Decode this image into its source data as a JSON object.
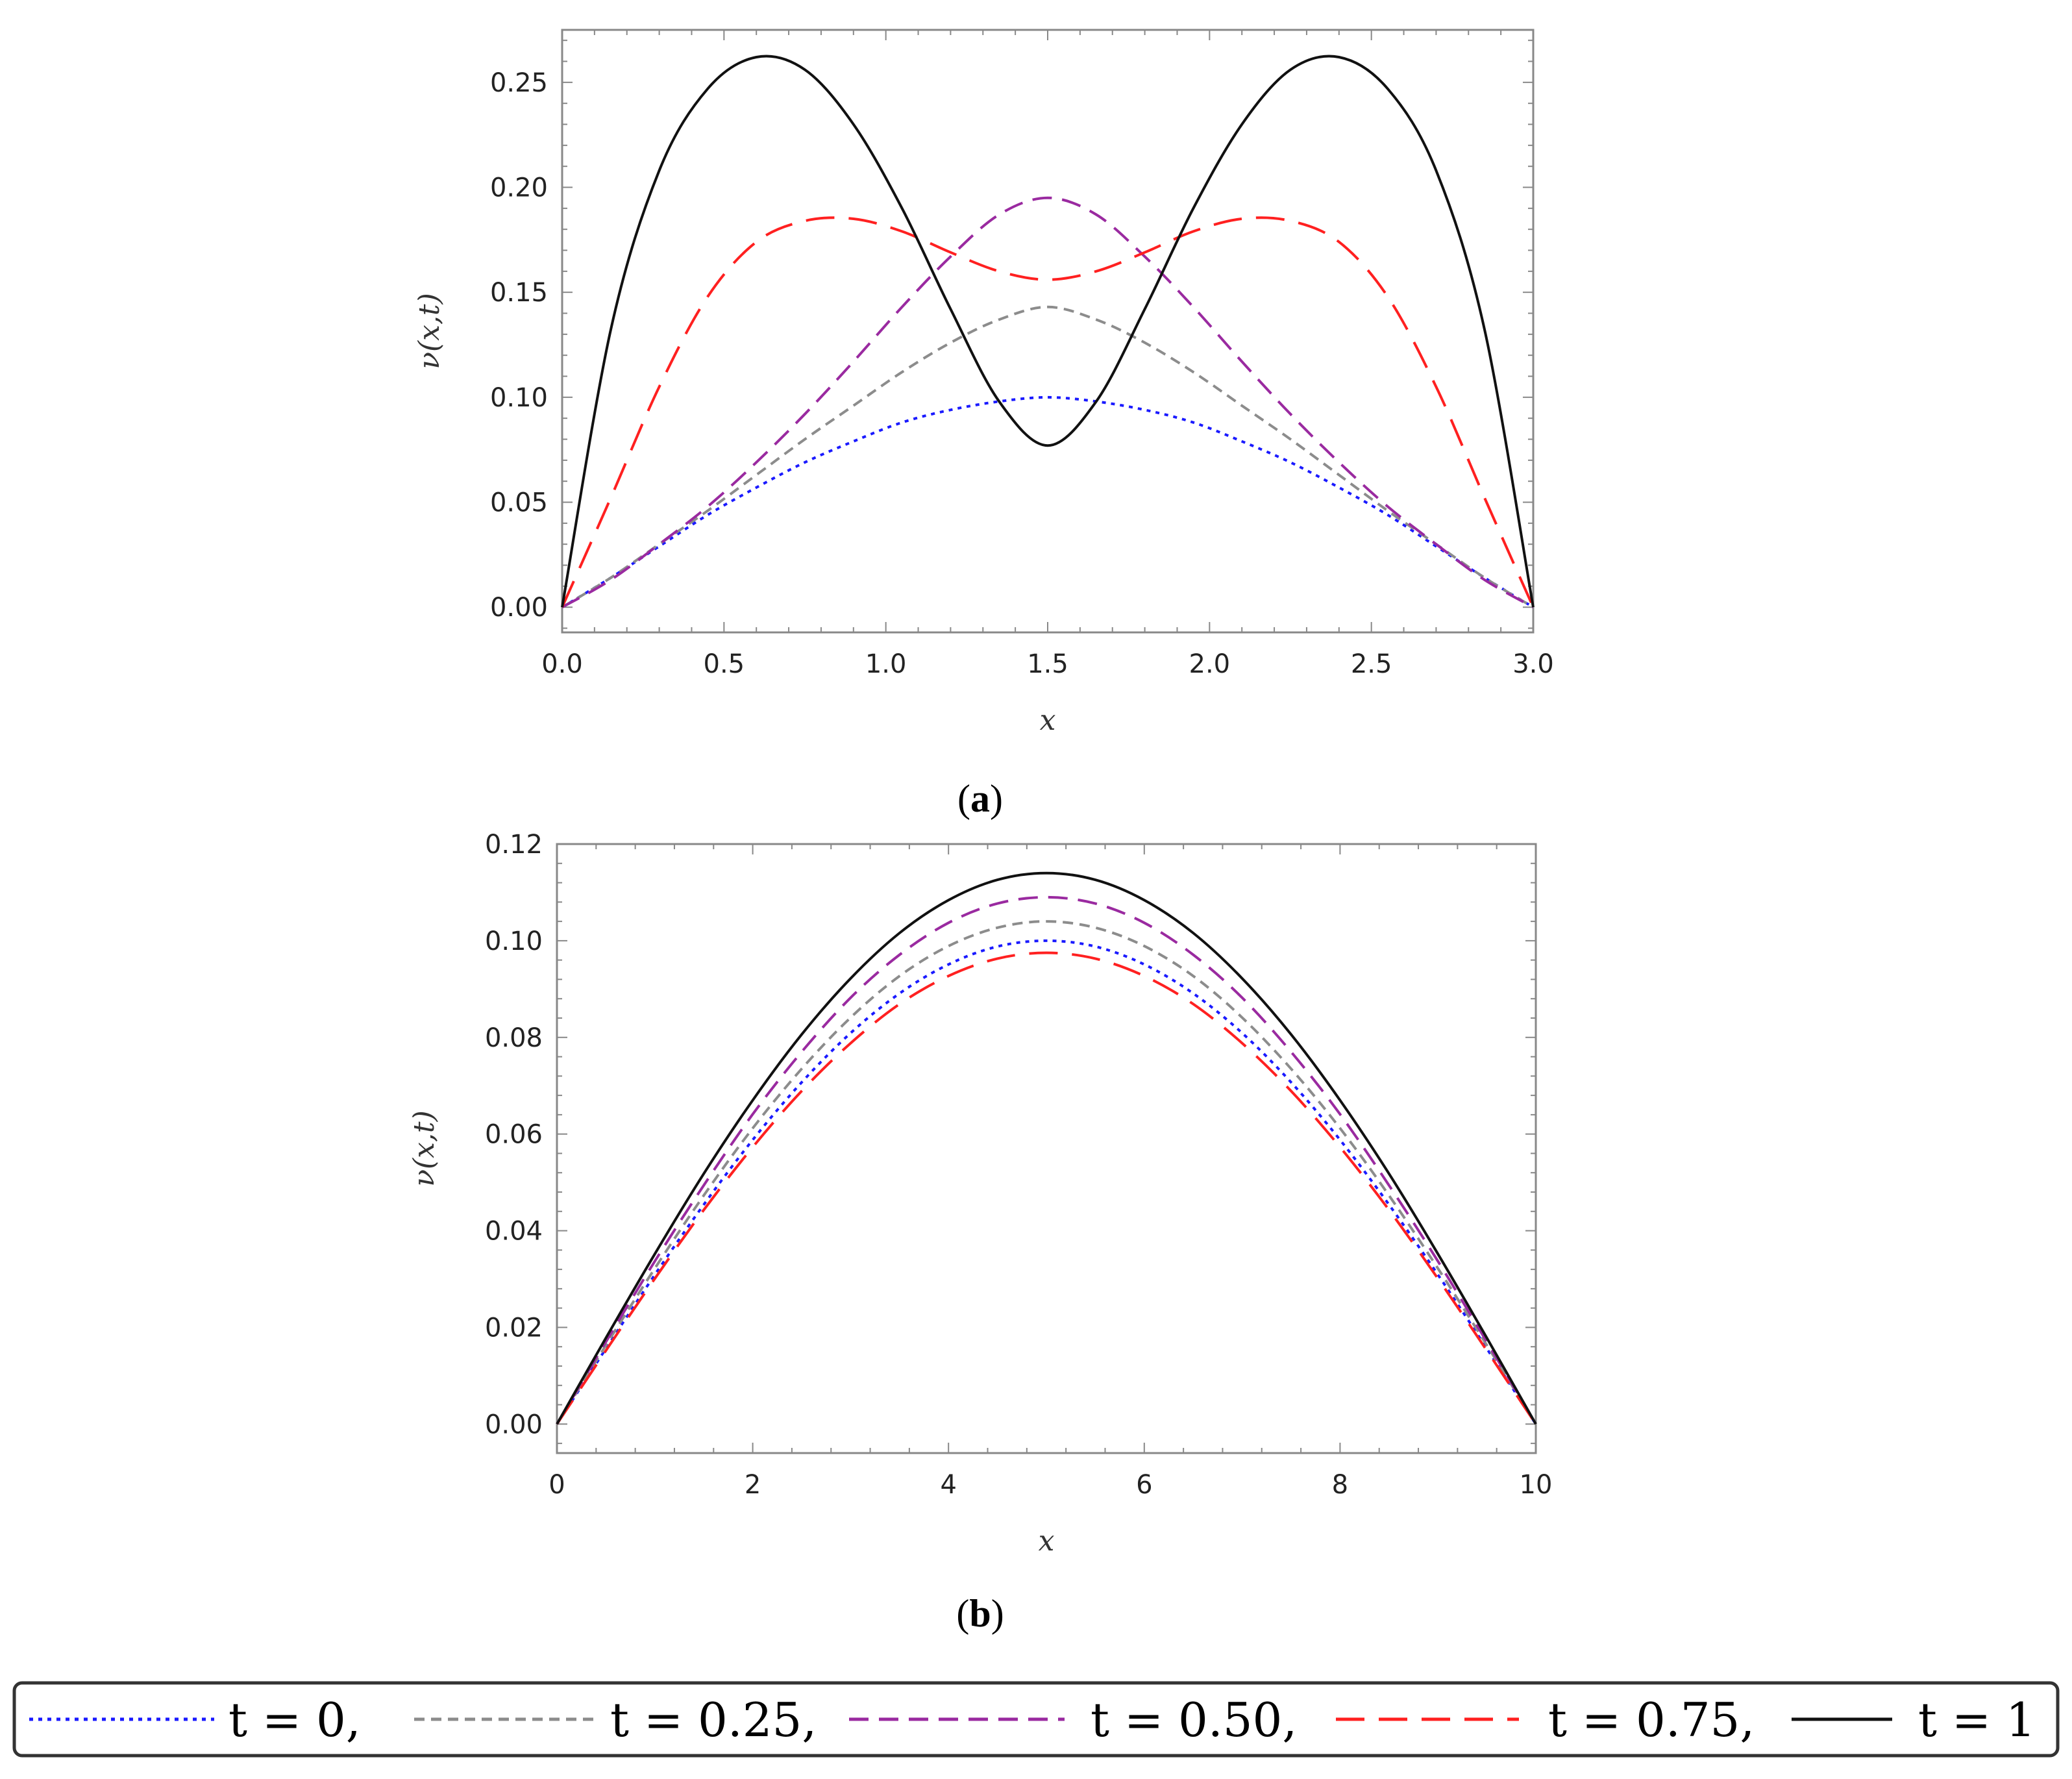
{
  "colors": {
    "t0": "#1a1aff",
    "t025": "#8c8c8c",
    "t050": "#9a2aa0",
    "t075": "#ff2020",
    "t1": "#111111"
  },
  "captions": {
    "a": "a",
    "b": "b"
  },
  "legend": {
    "entries": [
      {
        "label": "t = 0,",
        "color": "#1a1aff",
        "dash": "dotted"
      },
      {
        "label": "t = 0.25,",
        "color": "#8c8c8c",
        "dash": "short-dash"
      },
      {
        "label": "t = 0.50,",
        "color": "#9a2aa0",
        "dash": "dashed"
      },
      {
        "label": "t = 0.75,",
        "color": "#ff2020",
        "dash": "long-dash"
      },
      {
        "label": "t = 1",
        "color": "#111111",
        "dash": "solid"
      }
    ]
  },
  "chart_data": [
    {
      "type": "line",
      "panel": "a",
      "xlabel": "x",
      "ylabel": "ν(x,t)",
      "xlim": [
        0,
        3
      ],
      "ylim": [
        -0.012,
        0.275
      ],
      "xticks": [
        "0.0",
        "0.5",
        "1.0",
        "1.5",
        "2.0",
        "2.5",
        "3.0"
      ],
      "yticks": [
        "0.00",
        "0.05",
        "0.10",
        "0.15",
        "0.20",
        "0.25"
      ],
      "x": [
        0,
        0.15,
        0.3,
        0.45,
        0.6,
        0.75,
        0.9,
        1.05,
        1.2,
        1.35,
        1.5,
        1.65,
        1.8,
        1.95,
        2.1,
        2.25,
        2.4,
        2.55,
        2.7,
        2.85,
        3.0
      ],
      "series": [
        {
          "name": "t = 0",
          "values": [
            0,
            0.014,
            0.029,
            0.044,
            0.057,
            0.069,
            0.079,
            0.088,
            0.094,
            0.098,
            0.1,
            0.098,
            0.094,
            0.088,
            0.079,
            0.069,
            0.057,
            0.044,
            0.029,
            0.014,
            0
          ]
        },
        {
          "name": "t = 0.25",
          "values": [
            0,
            0.014,
            0.03,
            0.046,
            0.063,
            0.08,
            0.096,
            0.112,
            0.126,
            0.137,
            0.143,
            0.137,
            0.126,
            0.112,
            0.096,
            0.08,
            0.063,
            0.046,
            0.03,
            0.014,
            0
          ]
        },
        {
          "name": "t = 0.50",
          "values": [
            0,
            0.013,
            0.03,
            0.048,
            0.069,
            0.092,
            0.117,
            0.143,
            0.167,
            0.187,
            0.195,
            0.187,
            0.167,
            0.143,
            0.117,
            0.092,
            0.069,
            0.048,
            0.03,
            0.013,
            0
          ]
        },
        {
          "name": "t = 0.75",
          "values": [
            0,
            0.052,
            0.105,
            0.148,
            0.174,
            0.184,
            0.185,
            0.179,
            0.169,
            0.16,
            0.156,
            0.16,
            0.169,
            0.179,
            0.185,
            0.184,
            0.174,
            0.148,
            0.105,
            0.052,
            0
          ]
        },
        {
          "name": "t = 1",
          "values": [
            0,
            0.132,
            0.208,
            0.247,
            0.262,
            0.256,
            0.23,
            0.19,
            0.142,
            0.098,
            0.077,
            0.098,
            0.142,
            0.19,
            0.23,
            0.256,
            0.262,
            0.247,
            0.208,
            0.132,
            0
          ]
        }
      ]
    },
    {
      "type": "line",
      "panel": "b",
      "xlabel": "x",
      "ylabel": "ν(x,t)",
      "xlim": [
        0,
        10
      ],
      "ylim": [
        -0.006,
        0.12
      ],
      "xticks": [
        "0",
        "2",
        "4",
        "6",
        "8",
        "10"
      ],
      "yticks": [
        "0.00",
        "0.02",
        "0.04",
        "0.06",
        "0.08",
        "0.10",
        "0.12"
      ],
      "x": [
        0,
        0.5,
        1,
        1.5,
        2,
        2.5,
        3,
        3.5,
        4,
        4.5,
        5,
        5.5,
        6,
        6.5,
        7,
        7.5,
        8,
        8.5,
        9,
        9.5,
        10
      ],
      "series": [
        {
          "name": "t = 0",
          "values": [
            0,
            0.0156,
            0.0309,
            0.0454,
            0.0588,
            0.0707,
            0.0809,
            0.0891,
            0.0951,
            0.0988,
            0.1,
            0.0988,
            0.0951,
            0.0891,
            0.0809,
            0.0707,
            0.0588,
            0.0454,
            0.0309,
            0.0156,
            0
          ]
        },
        {
          "name": "t = 0.25",
          "values": [
            0,
            0.0163,
            0.0322,
            0.0473,
            0.0612,
            0.0735,
            0.0841,
            0.0927,
            0.0989,
            0.1027,
            0.104,
            0.1027,
            0.0989,
            0.0927,
            0.0841,
            0.0735,
            0.0612,
            0.0473,
            0.0322,
            0.0163,
            0
          ]
        },
        {
          "name": "t = 0.50",
          "values": [
            0,
            0.017,
            0.0337,
            0.0494,
            0.0641,
            0.077,
            0.0882,
            0.0971,
            0.1037,
            0.1077,
            0.109,
            0.1077,
            0.1037,
            0.0971,
            0.0882,
            0.077,
            0.0641,
            0.0494,
            0.0337,
            0.017,
            0
          ]
        },
        {
          "name": "t = 0.75",
          "values": [
            0,
            0.0152,
            0.0301,
            0.0443,
            0.0573,
            0.0689,
            0.0788,
            0.0869,
            0.0927,
            0.0963,
            0.0975,
            0.0963,
            0.0927,
            0.0869,
            0.0788,
            0.0689,
            0.0573,
            0.0443,
            0.0301,
            0.0152,
            0
          ]
        },
        {
          "name": "t = 1",
          "values": [
            0,
            0.0178,
            0.0352,
            0.0518,
            0.067,
            0.0806,
            0.0922,
            0.1016,
            0.1084,
            0.1126,
            0.114,
            0.1126,
            0.1084,
            0.1016,
            0.0922,
            0.0806,
            0.067,
            0.0518,
            0.0352,
            0.0178,
            0
          ]
        }
      ]
    }
  ]
}
